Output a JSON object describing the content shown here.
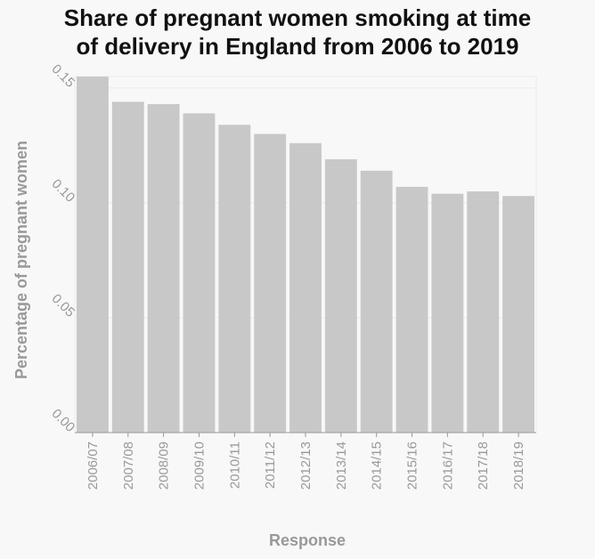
{
  "chart_data": {
    "type": "bar",
    "title_line1": "Share of pregnant women smoking at time",
    "title_line2": "of delivery in England from 2006 to 2019",
    "xlabel": "Response",
    "ylabel": "Percentage of pregnant women",
    "categories": [
      "2006/07",
      "2007/08",
      "2008/09",
      "2009/10",
      "2010/11",
      "2011/12",
      "2012/13",
      "2013/14",
      "2014/15",
      "2015/16",
      "2016/17",
      "2017/18",
      "2018/19"
    ],
    "values": [
      0.155,
      0.144,
      0.143,
      0.139,
      0.134,
      0.13,
      0.126,
      0.119,
      0.114,
      0.107,
      0.104,
      0.105,
      0.103
    ],
    "ylim": [
      0,
      0.155
    ],
    "yticks": [
      0.0,
      0.05,
      0.1,
      0.15
    ],
    "ytick_labels": [
      "0.00",
      "0.05",
      "0.10",
      "0.15"
    ],
    "grid": true,
    "bar_color": "#c8c8c8",
    "grid_color": "#ebebeb"
  }
}
